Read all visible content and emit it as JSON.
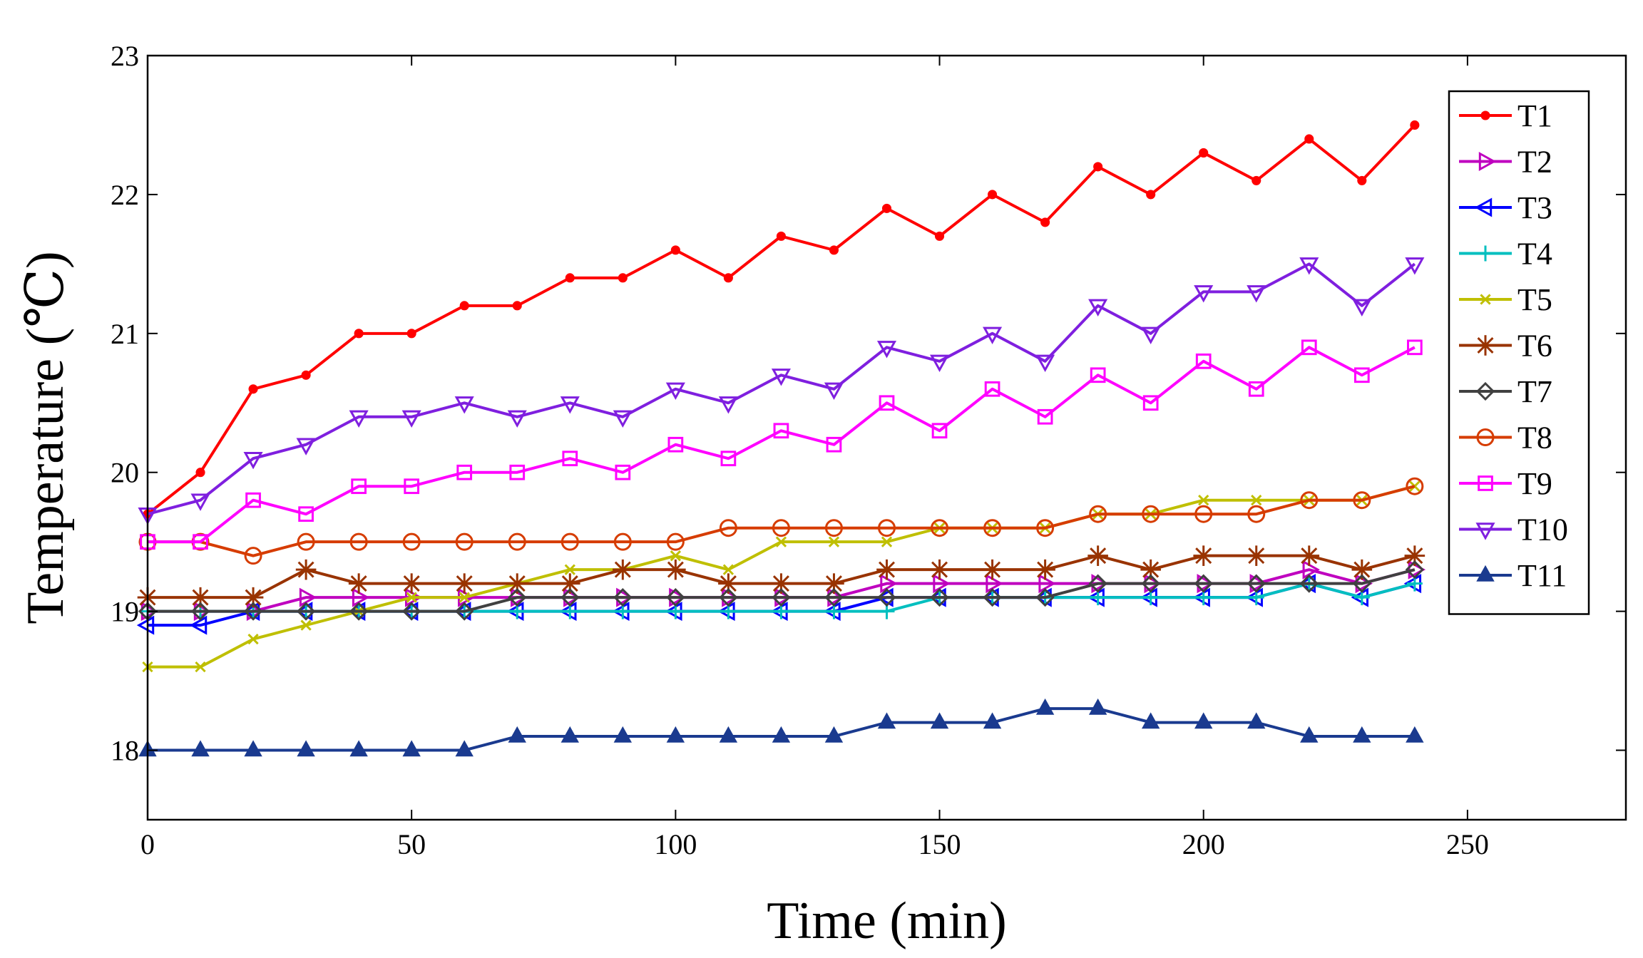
{
  "chart_data": {
    "type": "line",
    "title": "",
    "xlabel": "Time (min)",
    "ylabel": "Temperature (℃)",
    "xlim": [
      0,
      280
    ],
    "ylim": [
      17.5,
      23
    ],
    "xticks": [
      0,
      50,
      100,
      150,
      200,
      250
    ],
    "yticks": [
      18,
      19,
      20,
      21,
      22,
      23
    ],
    "grid": false,
    "legend_position": "top-right",
    "x": [
      0,
      10,
      20,
      30,
      40,
      50,
      60,
      70,
      80,
      90,
      100,
      110,
      120,
      130,
      140,
      150,
      160,
      170,
      180,
      190,
      200,
      210,
      220,
      230,
      240
    ],
    "series": [
      {
        "name": "T1",
        "color": "#ff0000",
        "marker": "dot",
        "values": [
          19.7,
          20.0,
          20.6,
          20.7,
          21.0,
          21.0,
          21.2,
          21.2,
          21.4,
          21.4,
          21.6,
          21.4,
          21.7,
          21.6,
          21.9,
          21.7,
          22.0,
          21.8,
          22.2,
          22.0,
          22.3,
          22.1,
          22.4,
          22.1,
          22.5
        ]
      },
      {
        "name": "T2",
        "color": "#bf00bf",
        "marker": "triangle-right",
        "values": [
          19.0,
          19.0,
          19.0,
          19.1,
          19.1,
          19.1,
          19.1,
          19.1,
          19.1,
          19.1,
          19.1,
          19.1,
          19.1,
          19.1,
          19.2,
          19.2,
          19.2,
          19.2,
          19.2,
          19.2,
          19.2,
          19.2,
          19.3,
          19.2,
          19.3
        ]
      },
      {
        "name": "T3",
        "color": "#0000ff",
        "marker": "triangle-left",
        "values": [
          18.9,
          18.9,
          19.0,
          19.0,
          19.0,
          19.0,
          19.0,
          19.0,
          19.0,
          19.0,
          19.0,
          19.0,
          19.0,
          19.0,
          19.1,
          19.1,
          19.1,
          19.1,
          19.1,
          19.1,
          19.1,
          19.1,
          19.2,
          19.1,
          19.2
        ]
      },
      {
        "name": "T4",
        "color": "#00bfbf",
        "marker": "plus",
        "values": [
          19.0,
          19.0,
          19.0,
          19.0,
          19.0,
          19.0,
          19.0,
          19.0,
          19.0,
          19.0,
          19.0,
          19.0,
          19.0,
          19.0,
          19.0,
          19.1,
          19.1,
          19.1,
          19.1,
          19.1,
          19.1,
          19.1,
          19.2,
          19.1,
          19.2
        ]
      },
      {
        "name": "T5",
        "color": "#bfbf00",
        "marker": "x",
        "values": [
          18.6,
          18.6,
          18.8,
          18.9,
          19.0,
          19.1,
          19.1,
          19.2,
          19.3,
          19.3,
          19.4,
          19.3,
          19.5,
          19.5,
          19.5,
          19.6,
          19.6,
          19.6,
          19.7,
          19.7,
          19.8,
          19.8,
          19.8,
          19.8,
          19.9
        ]
      },
      {
        "name": "T6",
        "color": "#993300",
        "marker": "asterisk",
        "values": [
          19.1,
          19.1,
          19.1,
          19.3,
          19.2,
          19.2,
          19.2,
          19.2,
          19.2,
          19.3,
          19.3,
          19.2,
          19.2,
          19.2,
          19.3,
          19.3,
          19.3,
          19.3,
          19.4,
          19.3,
          19.4,
          19.4,
          19.4,
          19.3,
          19.4
        ]
      },
      {
        "name": "T7",
        "color": "#404040",
        "marker": "diamond",
        "values": [
          19.0,
          19.0,
          19.0,
          19.0,
          19.0,
          19.0,
          19.0,
          19.1,
          19.1,
          19.1,
          19.1,
          19.1,
          19.1,
          19.1,
          19.1,
          19.1,
          19.1,
          19.1,
          19.2,
          19.2,
          19.2,
          19.2,
          19.2,
          19.2,
          19.3
        ]
      },
      {
        "name": "T8",
        "color": "#d63c00",
        "marker": "circle",
        "values": [
          19.5,
          19.5,
          19.4,
          19.5,
          19.5,
          19.5,
          19.5,
          19.5,
          19.5,
          19.5,
          19.5,
          19.6,
          19.6,
          19.6,
          19.6,
          19.6,
          19.6,
          19.6,
          19.7,
          19.7,
          19.7,
          19.7,
          19.8,
          19.8,
          19.9
        ]
      },
      {
        "name": "T9",
        "color": "#ff00ff",
        "marker": "square",
        "values": [
          19.5,
          19.5,
          19.8,
          19.7,
          19.9,
          19.9,
          20.0,
          20.0,
          20.1,
          20.0,
          20.2,
          20.1,
          20.3,
          20.2,
          20.5,
          20.3,
          20.6,
          20.4,
          20.7,
          20.5,
          20.8,
          20.6,
          20.9,
          20.7,
          20.9
        ]
      },
      {
        "name": "T10",
        "color": "#7f1fdf",
        "marker": "triangle-down",
        "values": [
          19.7,
          19.8,
          20.1,
          20.2,
          20.4,
          20.4,
          20.5,
          20.4,
          20.5,
          20.4,
          20.6,
          20.5,
          20.7,
          20.6,
          20.9,
          20.8,
          21.0,
          20.8,
          21.2,
          21.0,
          21.3,
          21.3,
          21.5,
          21.2,
          21.5
        ]
      },
      {
        "name": "T11",
        "color": "#1a3a8f",
        "marker": "triangle-up",
        "values": [
          18.0,
          18.0,
          18.0,
          18.0,
          18.0,
          18.0,
          18.0,
          18.1,
          18.1,
          18.1,
          18.1,
          18.1,
          18.1,
          18.1,
          18.2,
          18.2,
          18.2,
          18.3,
          18.3,
          18.2,
          18.2,
          18.2,
          18.1,
          18.1,
          18.1
        ]
      }
    ]
  }
}
